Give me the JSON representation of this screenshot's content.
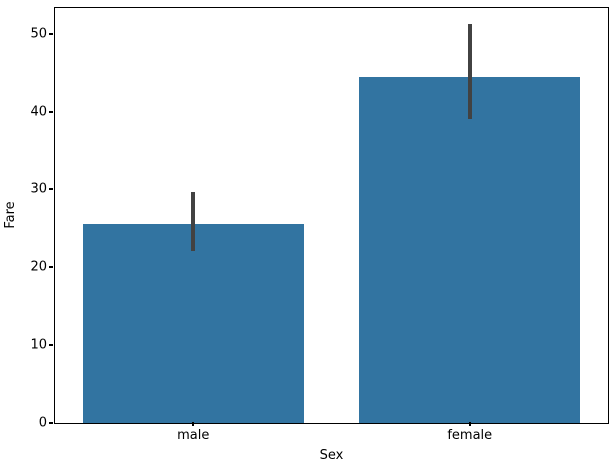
{
  "figure": {
    "background": "#ffffff"
  },
  "chart_data": {
    "type": "bar",
    "title": "",
    "xlabel": "Sex",
    "ylabel": "Fare",
    "categories": [
      "male",
      "female"
    ],
    "values": [
      25.5,
      44.5
    ],
    "error_bars": [
      [
        22.1,
        29.7
      ],
      [
        39.1,
        51.3
      ]
    ],
    "yticks": [
      0,
      10,
      20,
      30,
      40,
      50
    ],
    "ylim": [
      0,
      53.3
    ],
    "bar_rel_width": 0.8,
    "bar_color": "#3274a1",
    "error_bar_color": "#424242",
    "spine_color": "#000000",
    "text_color": "#000000",
    "grid": false,
    "legend": null
  }
}
